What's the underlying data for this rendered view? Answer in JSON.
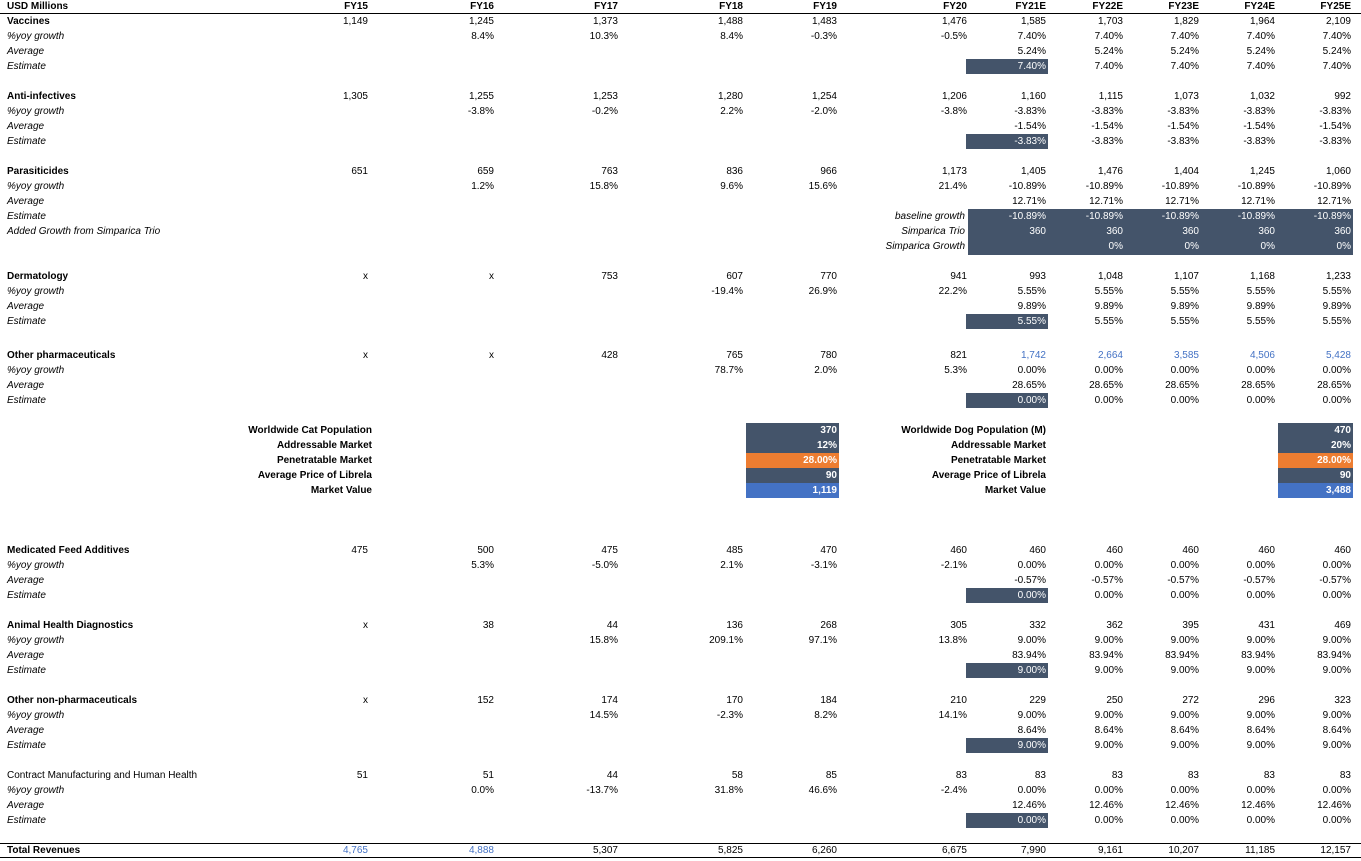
{
  "header": {
    "label": "USD Millions",
    "years": [
      "FY15",
      "FY16",
      "FY17",
      "FY18",
      "FY19",
      "FY20",
      "FY21E",
      "FY22E",
      "FY23E",
      "FY24E",
      "FY25E"
    ]
  },
  "segments": [
    {
      "name": "Vaccines",
      "bold": true,
      "rows": [
        {
          "label": "Vaccines",
          "style": "bold",
          "values": [
            "1,149",
            "1,245",
            "1,373",
            "1,488",
            "1,483",
            "1,476",
            "1,585",
            "1,703",
            "1,829",
            "1,964",
            "2,109"
          ]
        },
        {
          "label": "%yoy growth",
          "style": "italic",
          "values": [
            "",
            "8.4%",
            "10.3%",
            "8.4%",
            "-0.3%",
            "-0.5%",
            "7.40%",
            "7.40%",
            "7.40%",
            "7.40%",
            "7.40%"
          ]
        },
        {
          "label": "Average",
          "style": "italic",
          "values": [
            "",
            "",
            "",
            "",
            "",
            "",
            "5.24%",
            "5.24%",
            "5.24%",
            "5.24%",
            "5.24%"
          ]
        },
        {
          "label": "Estimate",
          "style": "italic",
          "values": [
            "",
            "",
            "",
            "",
            "",
            "",
            "7.40%",
            "7.40%",
            "7.40%",
            "7.40%",
            "7.40%"
          ],
          "highlight": 6
        }
      ]
    },
    {
      "name": "Anti-infectives",
      "rows": [
        {
          "label": "Anti-infectives",
          "style": "bold",
          "values": [
            "1,305",
            "1,255",
            "1,253",
            "1,280",
            "1,254",
            "1,206",
            "1,160",
            "1,115",
            "1,073",
            "1,032",
            "992"
          ]
        },
        {
          "label": "%yoy growth",
          "style": "italic",
          "values": [
            "",
            "-3.8%",
            "-0.2%",
            "2.2%",
            "-2.0%",
            "-3.8%",
            "-3.83%",
            "-3.83%",
            "-3.83%",
            "-3.83%",
            "-3.83%"
          ]
        },
        {
          "label": "Average",
          "style": "italic",
          "values": [
            "",
            "",
            "",
            "",
            "",
            "",
            "-1.54%",
            "-1.54%",
            "-1.54%",
            "-1.54%",
            "-1.54%"
          ]
        },
        {
          "label": "Estimate",
          "style": "italic",
          "values": [
            "",
            "",
            "",
            "",
            "",
            "",
            "-3.83%",
            "-3.83%",
            "-3.83%",
            "-3.83%",
            "-3.83%"
          ],
          "highlight": 6
        }
      ]
    }
  ],
  "parasiticides": {
    "title": "Parasiticides",
    "values": [
      "651",
      "659",
      "763",
      "836",
      "966",
      "1,173",
      "1,405",
      "1,476",
      "1,404",
      "1,245",
      "1,060"
    ],
    "growth_label": "%yoy growth",
    "growth": [
      "",
      "1.2%",
      "15.8%",
      "9.6%",
      "15.6%",
      "21.4%",
      "-10.89%",
      "-10.89%",
      "-10.89%",
      "-10.89%",
      "-10.89%"
    ],
    "average_label": "Average",
    "average": [
      "12.71%",
      "12.71%",
      "12.71%",
      "12.71%",
      "12.71%"
    ],
    "estimate_label": "Estimate",
    "added_label": "Added Growth from Simparica Trio",
    "baseline_label": "baseline growth",
    "baseline": [
      "-10.89%",
      "-10.89%",
      "-10.89%",
      "-10.89%",
      "-10.89%"
    ],
    "trio_label": "Simparica Trio",
    "trio": [
      "360",
      "360",
      "360",
      "360",
      "360"
    ],
    "trio_growth_label": "Simparica Growth",
    "trio_growth": [
      "",
      "0%",
      "0%",
      "0%",
      "0%"
    ]
  },
  "dermatology": {
    "title": "Dermatology",
    "values": [
      "x",
      "x",
      "753",
      "607",
      "770",
      "941",
      "993",
      "1,048",
      "1,107",
      "1,168",
      "1,233"
    ],
    "growth": [
      "",
      "",
      "",
      "-19.4%",
      "26.9%",
      "22.2%",
      "5.55%",
      "5.55%",
      "5.55%",
      "5.55%",
      "5.55%"
    ],
    "average": [
      "9.89%",
      "9.89%",
      "9.89%",
      "9.89%",
      "9.89%"
    ],
    "estimate": [
      "5.55%",
      "5.55%",
      "5.55%",
      "5.55%",
      "5.55%"
    ]
  },
  "other_pharma": {
    "title": "Other pharmaceuticals",
    "values": [
      "x",
      "x",
      "428",
      "765",
      "780",
      "821",
      "1,742",
      "2,664",
      "3,585",
      "4,506",
      "5,428"
    ],
    "growth": [
      "",
      "",
      "",
      "78.7%",
      "2.0%",
      "5.3%",
      "0.00%",
      "0.00%",
      "0.00%",
      "0.00%",
      "0.00%"
    ],
    "average": [
      "28.65%",
      "28.65%",
      "28.65%",
      "28.65%",
      "28.65%"
    ],
    "estimate": [
      "0.00%",
      "0.00%",
      "0.00%",
      "0.00%",
      "0.00%"
    ]
  },
  "librela": {
    "cat_labels": [
      "Worldwide Cat  Population",
      "Addressable Market",
      "Penetratable Market",
      "Average Price of Librela",
      "Market Value"
    ],
    "cat_values": [
      "370",
      "12%",
      "28.00%",
      "90",
      "1,119"
    ],
    "dog_labels": [
      "Worldwide Dog Population (M)",
      "Addressable Market",
      "Penetratable Market",
      "Average Price of Librela",
      "Market Value"
    ],
    "dog_values": [
      "470",
      "20%",
      "28.00%",
      "90",
      "3,488"
    ],
    "colors": {
      "slate": "#44546a",
      "orange": "#ed7d31",
      "blue": "#4472c4"
    }
  },
  "lower_segments": [
    {
      "title": "Medicated Feed Additives",
      "title_style": "bold",
      "values": [
        "475",
        "500",
        "475",
        "485",
        "470",
        "460",
        "460",
        "460",
        "460",
        "460",
        "460"
      ],
      "growth": [
        "",
        "5.3%",
        "-5.0%",
        "2.1%",
        "-3.1%",
        "-2.1%",
        "0.00%",
        "0.00%",
        "0.00%",
        "0.00%",
        "0.00%"
      ],
      "average": [
        "-0.57%",
        "-0.57%",
        "-0.57%",
        "-0.57%",
        "-0.57%"
      ],
      "estimate": [
        "0.00%",
        "0.00%",
        "0.00%",
        "0.00%",
        "0.00%"
      ]
    },
    {
      "title": "Animal Health Diagnostics",
      "title_style": "bold",
      "values": [
        "x",
        "38",
        "44",
        "136",
        "268",
        "305",
        "332",
        "362",
        "395",
        "431",
        "469"
      ],
      "growth": [
        "",
        "",
        "15.8%",
        "209.1%",
        "97.1%",
        "13.8%",
        "9.00%",
        "9.00%",
        "9.00%",
        "9.00%",
        "9.00%"
      ],
      "average": [
        "83.94%",
        "83.94%",
        "83.94%",
        "83.94%",
        "83.94%"
      ],
      "estimate": [
        "9.00%",
        "9.00%",
        "9.00%",
        "9.00%",
        "9.00%"
      ]
    },
    {
      "title": "Other non-pharmaceuticals",
      "title_style": "bold",
      "values": [
        "x",
        "152",
        "174",
        "170",
        "184",
        "210",
        "229",
        "250",
        "272",
        "296",
        "323"
      ],
      "growth": [
        "",
        "",
        "14.5%",
        "-2.3%",
        "8.2%",
        "14.1%",
        "9.00%",
        "9.00%",
        "9.00%",
        "9.00%",
        "9.00%"
      ],
      "average": [
        "8.64%",
        "8.64%",
        "8.64%",
        "8.64%",
        "8.64%"
      ],
      "estimate": [
        "9.00%",
        "9.00%",
        "9.00%",
        "9.00%",
        "9.00%"
      ]
    },
    {
      "title": "Contract Manufacturing and Human Health",
      "title_style": "normal",
      "values": [
        "51",
        "51",
        "44",
        "58",
        "85",
        "83",
        "83",
        "83",
        "83",
        "83",
        "83"
      ],
      "growth": [
        "",
        "0.0%",
        "-13.7%",
        "31.8%",
        "46.6%",
        "-2.4%",
        "0.00%",
        "0.00%",
        "0.00%",
        "0.00%",
        "0.00%"
      ],
      "average": [
        "12.46%",
        "12.46%",
        "12.46%",
        "12.46%",
        "12.46%"
      ],
      "estimate": [
        "0.00%",
        "0.00%",
        "0.00%",
        "0.00%",
        "0.00%"
      ]
    }
  ],
  "labels": {
    "growth": "%yoy growth",
    "average": "Average",
    "estimate": "Estimate"
  },
  "total": {
    "label": "Total Revenues",
    "values": [
      "4,765",
      "4,888",
      "5,307",
      "5,825",
      "6,260",
      "6,675",
      "7,990",
      "9,161",
      "10,207",
      "11,185",
      "12,157"
    ]
  }
}
